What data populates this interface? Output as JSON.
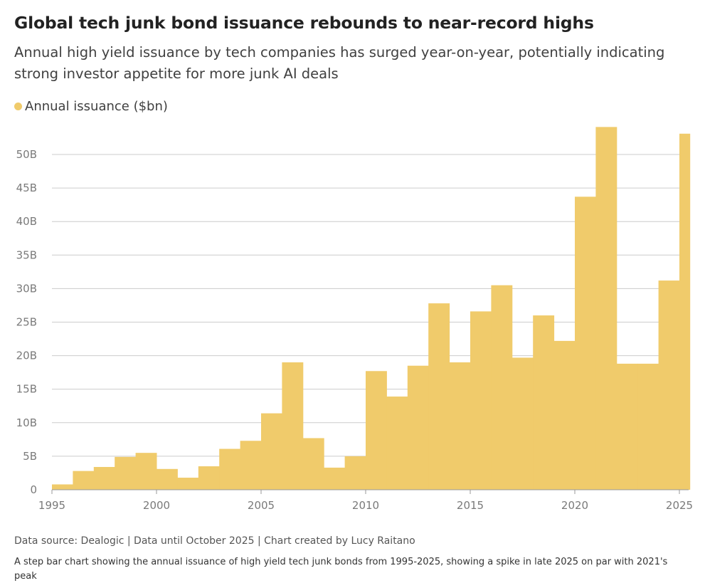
{
  "title": "Global tech junk bond issuance rebounds to near-record highs",
  "subtitle": "Annual high yield issuance by tech companies has surged year-on-year, potentially indicating strong investor appetite for more junk AI deals",
  "legend": {
    "label": "Annual issuance ($bn)",
    "color": "#f0cb6b"
  },
  "footer": {
    "source": "Data source: Dealogic | Data until October 2025 | Chart created by Lucy Raitano",
    "description": "A step bar chart showing the annual issuance of high yield tech junk bonds from 1995-2025, showing a spike in late 2025 on par with 2021's peak"
  },
  "chart_data": {
    "type": "bar",
    "title": "Global tech junk bond issuance rebounds to near-record highs",
    "xlabel": "",
    "ylabel": "",
    "series": [
      {
        "name": "Annual issuance ($bn)",
        "color": "#f0cb6b",
        "x": [
          1995,
          1996,
          1997,
          1998,
          1999,
          2000,
          2001,
          2002,
          2003,
          2004,
          2005,
          2006,
          2007,
          2008,
          2009,
          2010,
          2011,
          2012,
          2013,
          2014,
          2015,
          2016,
          2017,
          2018,
          2019,
          2020,
          2021,
          2022,
          2023,
          2024,
          2025
        ],
        "values": [
          0.8,
          2.8,
          3.4,
          4.9,
          5.5,
          3.1,
          1.8,
          3.5,
          6.1,
          7.3,
          11.4,
          19.0,
          7.7,
          3.3,
          5.0,
          17.7,
          13.9,
          18.5,
          27.8,
          19.0,
          26.6,
          30.5,
          19.7,
          26.0,
          22.2,
          43.7,
          54.1,
          18.8,
          18.8,
          31.2,
          53.1
        ]
      }
    ],
    "xlim": [
      1995,
      2025
    ],
    "ylim": [
      0,
      54.1
    ],
    "xticks": [
      1995,
      2000,
      2005,
      2010,
      2015,
      2020,
      2025
    ],
    "xtick_labels": [
      "1995",
      "2000",
      "2005",
      "2010",
      "2015",
      "2020",
      "2025"
    ],
    "yticks": [
      0,
      5,
      10,
      15,
      20,
      25,
      30,
      35,
      40,
      45,
      50
    ],
    "ytick_labels": [
      "0",
      "5B",
      "10B",
      "15B",
      "20B",
      "25B",
      "30B",
      "35B",
      "40B",
      "45B",
      "50B"
    ],
    "grid": true,
    "gridline_color": "#cccccc",
    "axis_color": "#999999"
  }
}
